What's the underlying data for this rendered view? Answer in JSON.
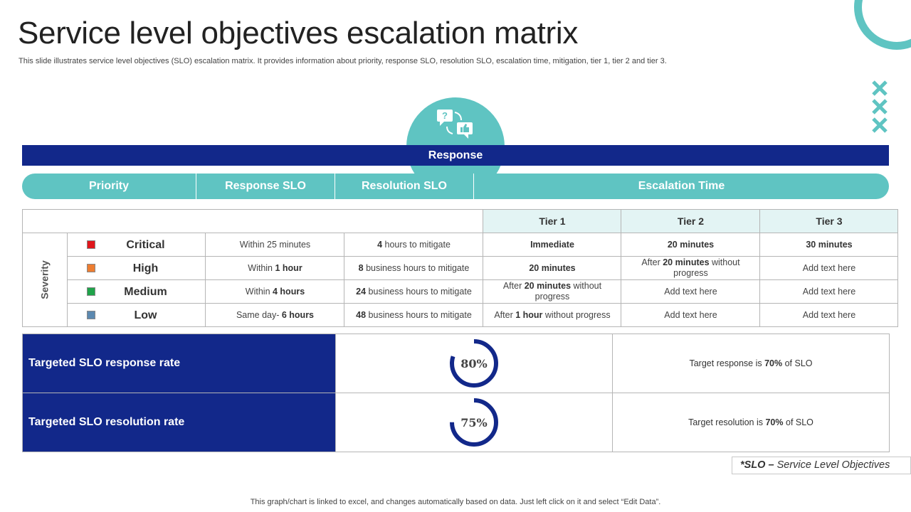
{
  "title": "Service level objectives escalation matrix",
  "subtitle": "This slide illustrates service level objectives (SLO) escalation matrix. It provides information about priority, response SLO, resolution SLO, escalation time, mitigation, tier 1, tier 2 and tier 3.",
  "response_bar": "Response",
  "header": {
    "priority": "Priority",
    "response_slo": "Response SLO",
    "resolution_slo": "Resolution SLO",
    "escalation_time": "Escalation Time"
  },
  "tiers": [
    "Tier 1",
    "Tier 2",
    "Tier 3"
  ],
  "severity_label": "Severity",
  "rows": [
    {
      "priority": "Critical",
      "color": "#e0161b",
      "response": [
        {
          "t": "Within 25 minutes",
          "b": false
        }
      ],
      "resolution": [
        {
          "t": "4",
          "b": true
        },
        {
          "t": " hours to mitigate",
          "b": false
        }
      ],
      "tier1": [
        {
          "t": "Immediate",
          "b": true
        }
      ],
      "tier2": [
        {
          "t": "20 minutes",
          "b": true
        }
      ],
      "tier3": [
        {
          "t": "30 minutes",
          "b": true
        }
      ]
    },
    {
      "priority": "High",
      "color": "#ed7d31",
      "response": [
        {
          "t": "Within ",
          "b": false
        },
        {
          "t": "1 hour",
          "b": true
        }
      ],
      "resolution": [
        {
          "t": "8",
          "b": true
        },
        {
          "t": " business hours to mitigate",
          "b": false
        }
      ],
      "tier1": [
        {
          "t": "20 minutes",
          "b": true
        }
      ],
      "tier2": [
        {
          "t": "After ",
          "b": false
        },
        {
          "t": "20 minutes",
          "b": true
        },
        {
          "t": " without progress",
          "b": false
        }
      ],
      "tier3": [
        {
          "t": "Add text here",
          "b": false
        }
      ]
    },
    {
      "priority": "Medium",
      "color": "#1fa34a",
      "response": [
        {
          "t": "Within ",
          "b": false
        },
        {
          "t": "4 hours",
          "b": true
        }
      ],
      "resolution": [
        {
          "t": "24",
          "b": true
        },
        {
          "t": " business hours to mitigate",
          "b": false
        }
      ],
      "tier1": [
        {
          "t": "After ",
          "b": false
        },
        {
          "t": "20 minutes",
          "b": true
        },
        {
          "t": " without progress",
          "b": false
        }
      ],
      "tier2": [
        {
          "t": "Add text here",
          "b": false
        }
      ],
      "tier3": [
        {
          "t": "Add text here",
          "b": false
        }
      ]
    },
    {
      "priority": "Low",
      "color": "#5c89b0",
      "response": [
        {
          "t": "Same day- ",
          "b": false
        },
        {
          "t": "6 hours",
          "b": true
        }
      ],
      "resolution": [
        {
          "t": "48",
          "b": true
        },
        {
          "t": " business hours to mitigate",
          "b": false
        }
      ],
      "tier1": [
        {
          "t": "After ",
          "b": false
        },
        {
          "t": "1 hour",
          "b": true
        },
        {
          "t": " without progress",
          "b": false
        }
      ],
      "tier2": [
        {
          "t": "Add text here",
          "b": false
        }
      ],
      "tier3": [
        {
          "t": "Add text here",
          "b": false
        }
      ]
    }
  ],
  "rates": [
    {
      "label": "Targeted SLO response rate",
      "percent": 80,
      "percent_text": "80%",
      "note_pre": "Target  response is ",
      "note_bold": "70%",
      "note_post": "  of SLO"
    },
    {
      "label": "Targeted SLO resolution rate",
      "percent": 75,
      "percent_text": "75%",
      "note_pre": "Target  resolution is ",
      "note_bold": "70%",
      "note_post": "  of SLO"
    }
  ],
  "slo_note": {
    "bold": "*SLO – ",
    "rest": "Service Level Objectives"
  },
  "footer": "This graph/chart is linked to excel,  and changes automatically based on data. Just left click on it and select “Edit Data”.",
  "colors": {
    "navy": "#12288a",
    "teal": "#5fc4c2",
    "tier_head": "#e3f4f4"
  }
}
